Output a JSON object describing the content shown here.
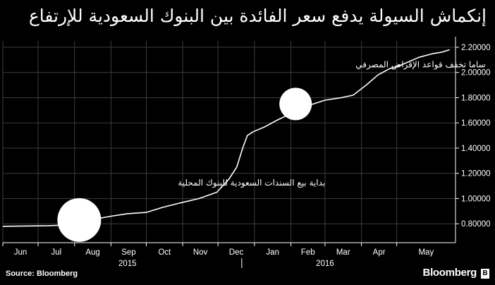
{
  "title": "إنكماش السيولة يدفع سعر الفائدة بين البنوك السعودية للإرتفاع",
  "source": "Source: Bloomberg",
  "brand": "Bloomberg",
  "brand_icon": "bloomberg-terminal-icon",
  "colors": {
    "background": "#000000",
    "line": "#ffffff",
    "grid": "#3c3c3c",
    "text": "#ffffff",
    "marker": "#ffffff"
  },
  "annotations": [
    {
      "text": "ساما تخفف قواعد الإقراض المصرفي",
      "marker_date": "2016-02-05",
      "marker_value": 1.75
    },
    {
      "text": "بداية بيع السندات السعودية للبنوك المحلية",
      "marker_date": "2015-08-05",
      "marker_value": 0.83
    }
  ],
  "chart_data": {
    "type": "line",
    "title": "إنكماش السيولة يدفع سعر الفائدة بين البنوك السعودية للإرتفاع",
    "xlabel": "",
    "ylabel": "",
    "grid": true,
    "y_axis_side": "right",
    "ylim": [
      0.65,
      2.25
    ],
    "yticks": [
      0.8,
      1.0,
      1.2,
      1.4,
      1.6,
      1.8,
      2.0,
      2.2
    ],
    "ytick_labels": [
      "0.80000",
      "1.00000",
      "1.20000",
      "1.40000",
      "1.60000",
      "1.80000",
      "2.00000",
      "2.20000"
    ],
    "xlim": [
      "2015-06-01",
      "2016-06-20"
    ],
    "month_ticks": [
      {
        "label": "Jun",
        "date": "2015-06-01"
      },
      {
        "label": "Jul",
        "date": "2015-07-01"
      },
      {
        "label": "Aug",
        "date": "2015-08-01"
      },
      {
        "label": "Sep",
        "date": "2015-09-01"
      },
      {
        "label": "Oct",
        "date": "2015-10-01"
      },
      {
        "label": "Nov",
        "date": "2015-11-01"
      },
      {
        "label": "Dec",
        "date": "2015-12-01"
      },
      {
        "label": "Jan",
        "date": "2016-01-01"
      },
      {
        "label": "Feb",
        "date": "2016-02-01"
      },
      {
        "label": "Mar",
        "date": "2016-03-01"
      },
      {
        "label": "Apr",
        "date": "2016-04-01"
      },
      {
        "label": "May",
        "date": "2016-05-01"
      }
    ],
    "year_labels": [
      {
        "label": "2015",
        "date": "2015-09-15"
      },
      {
        "label": "2016",
        "date": "2016-03-01"
      }
    ],
    "series": [
      {
        "points": [
          [
            "2015-06-01",
            0.78
          ],
          [
            "2015-07-10",
            0.785
          ],
          [
            "2015-07-25",
            0.79
          ],
          [
            "2015-08-05",
            0.8
          ],
          [
            "2015-08-20",
            0.84
          ],
          [
            "2015-09-01",
            0.86
          ],
          [
            "2015-09-15",
            0.88
          ],
          [
            "2015-10-01",
            0.89
          ],
          [
            "2015-10-15",
            0.93
          ],
          [
            "2015-11-01",
            0.97
          ],
          [
            "2015-11-15",
            1.0
          ],
          [
            "2015-11-30",
            1.05
          ],
          [
            "2015-12-10",
            1.15
          ],
          [
            "2015-12-17",
            1.25
          ],
          [
            "2015-12-22",
            1.4
          ],
          [
            "2015-12-26",
            1.5
          ],
          [
            "2015-12-31",
            1.53
          ],
          [
            "2016-01-10",
            1.57
          ],
          [
            "2016-01-20",
            1.62
          ],
          [
            "2016-01-31",
            1.67
          ],
          [
            "2016-02-10",
            1.72
          ],
          [
            "2016-02-20",
            1.75
          ],
          [
            "2016-03-01",
            1.78
          ],
          [
            "2016-03-15",
            1.8
          ],
          [
            "2016-03-25",
            1.82
          ],
          [
            "2016-04-05",
            1.9
          ],
          [
            "2016-04-15",
            1.98
          ],
          [
            "2016-04-25",
            2.03
          ],
          [
            "2016-05-05",
            2.06
          ],
          [
            "2016-05-20",
            2.12
          ],
          [
            "2016-06-01",
            2.15
          ],
          [
            "2016-06-08",
            2.16
          ],
          [
            "2016-06-15",
            2.18
          ]
        ]
      }
    ]
  }
}
